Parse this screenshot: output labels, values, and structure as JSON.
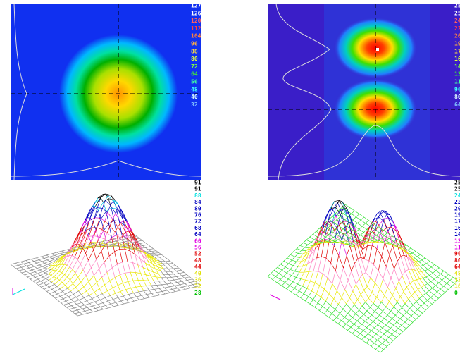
{
  "panels": [
    {
      "scale_labels": [
        "127",
        "126",
        "120",
        "112",
        "104",
        "96",
        "88",
        "80",
        "72",
        "64",
        "56",
        "48",
        "40",
        "32"
      ],
      "scale_colors": [
        "#ffffff",
        "#ffffff",
        "#ff6060",
        "#ff4040",
        "#ff8040",
        "#ffb040",
        "#ffe040",
        "#e0ff40",
        "#80ff40",
        "#40e040",
        "#40ffa0",
        "#40ffff",
        "#e0ffff",
        "#80c0ff"
      ]
    },
    {
      "scale_labels": [
        "25",
        "25",
        "24",
        "22",
        "20",
        "19",
        "17",
        "16",
        "14",
        "13",
        "11",
        "96",
        "80",
        "64"
      ],
      "scale_colors": [
        "#ffffff",
        "#ffffff",
        "#ff6060",
        "#ff4040",
        "#ff8040",
        "#ffb040",
        "#ffe040",
        "#e0ff40",
        "#80ff40",
        "#40e040",
        "#40ffa0",
        "#40ffff",
        "#e0ffff",
        "#80c0ff"
      ]
    },
    {
      "scale_labels": [
        "91",
        "91",
        "88",
        "84",
        "80",
        "76",
        "72",
        "68",
        "64",
        "60",
        "56",
        "52",
        "48",
        "44",
        "40",
        "36",
        "32",
        "28"
      ],
      "scale_colors": [
        "#000000",
        "#000000",
        "#00e0e0",
        "#0000c0",
        "#0000c0",
        "#0000c0",
        "#0000c0",
        "#0000c0",
        "#0000c0",
        "#e000e0",
        "#e000e0",
        "#e00000",
        "#e00000",
        "#e00000",
        "#e0e000",
        "#e0e000",
        "#e0e000",
        "#00c000"
      ]
    },
    {
      "scale_labels": [
        "25",
        "25",
        "24",
        "22",
        "20",
        "19",
        "17",
        "16",
        "14",
        "13",
        "11",
        "96",
        "80",
        "64",
        "48",
        "32",
        "16",
        "0"
      ],
      "scale_colors": [
        "#000000",
        "#000000",
        "#00e0e0",
        "#0000c0",
        "#0000c0",
        "#0000c0",
        "#0000c0",
        "#0000c0",
        "#0000c0",
        "#e000e0",
        "#e000e0",
        "#e00000",
        "#e00000",
        "#e00000",
        "#e0e000",
        "#e0e000",
        "#e0e000",
        "#00c000"
      ]
    }
  ]
}
